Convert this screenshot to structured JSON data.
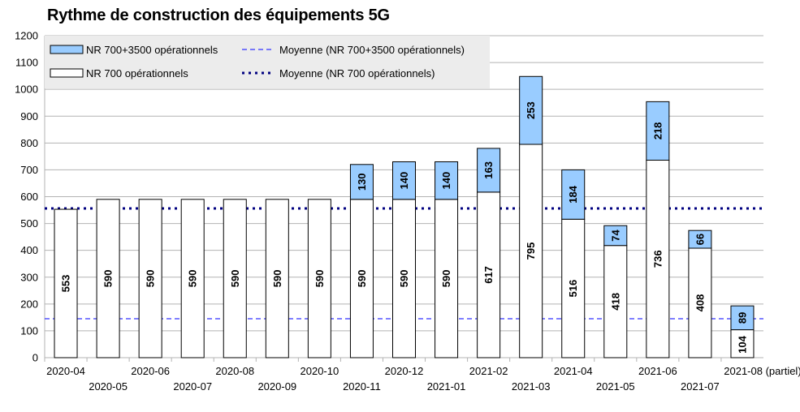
{
  "chart_data": {
    "type": "bar",
    "stacked": true,
    "title": "Rythme de construction des équipements 5G",
    "categories": [
      "2020-04",
      "2020-05",
      "2020-06",
      "2020-07",
      "2020-08",
      "2020-09",
      "2020-10",
      "2020-11",
      "2020-12",
      "2021-01",
      "2021-02",
      "2021-03",
      "2021-04",
      "2021-05",
      "2021-06",
      "2021-07",
      "2021-08 (partiel)"
    ],
    "series": [
      {
        "name": "NR 700 opérationnels",
        "color": "#ffffff",
        "values": [
          553,
          590,
          590,
          590,
          590,
          590,
          590,
          590,
          590,
          590,
          617,
          795,
          516,
          418,
          736,
          408,
          104
        ]
      },
      {
        "name": "NR 700+3500 opérationnels",
        "color": "#99ccff",
        "values": [
          null,
          null,
          null,
          null,
          null,
          null,
          null,
          130,
          140,
          140,
          163,
          253,
          184,
          74,
          218,
          66,
          89
        ]
      }
    ],
    "reference_lines": [
      {
        "name": "Moyenne (NR 700+3500 opérationnels)",
        "value": 145,
        "style": "dashed",
        "color": "#3333ff"
      },
      {
        "name": "Moyenne (NR 700 opérationnels)",
        "value": 556,
        "style": "dotted",
        "color": "#000080"
      }
    ],
    "ylim": [
      0,
      1200
    ],
    "yticks": [
      0,
      100,
      200,
      300,
      400,
      500,
      600,
      700,
      800,
      900,
      1000,
      1100,
      1200
    ],
    "grid": true,
    "legend_position": "top-left",
    "xlabel": "",
    "ylabel": ""
  }
}
